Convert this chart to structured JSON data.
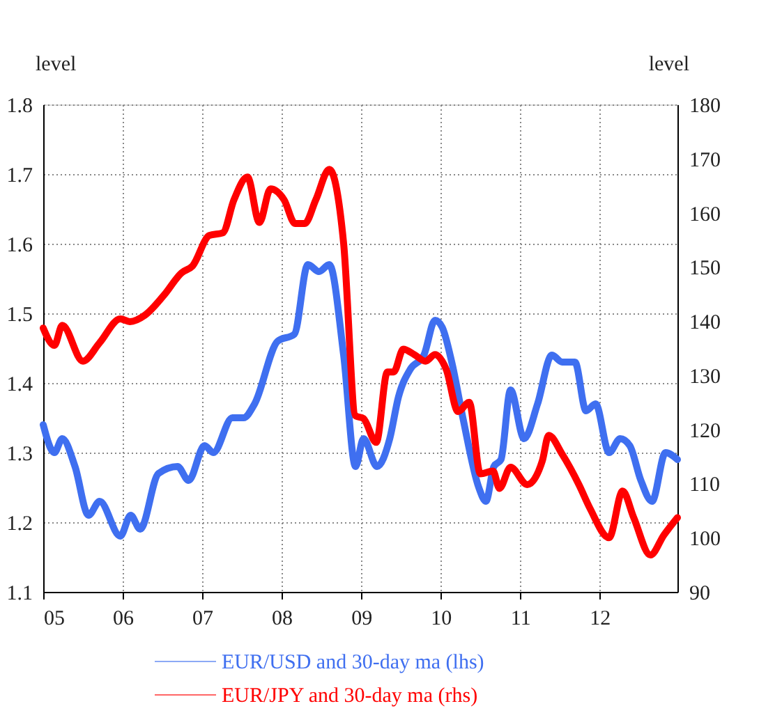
{
  "chart_data": {
    "type": "line",
    "ylabel": "level",
    "y2label": "level",
    "xlim": [
      2005,
      2012.98
    ],
    "xticks": [
      {
        "value": 2005,
        "label": "05"
      },
      {
        "value": 2006,
        "label": "06"
      },
      {
        "value": 2007,
        "label": "07"
      },
      {
        "value": 2008,
        "label": "08"
      },
      {
        "value": 2009,
        "label": "09"
      },
      {
        "value": 2010,
        "label": "10"
      },
      {
        "value": 2011,
        "label": "11"
      },
      {
        "value": 2012,
        "label": "12"
      }
    ],
    "ylim": [
      1.1,
      1.8
    ],
    "yticks": [
      1.1,
      1.2,
      1.3,
      1.4,
      1.5,
      1.6,
      1.7,
      1.8
    ],
    "y2lim": [
      90,
      180
    ],
    "y2ticks": [
      90,
      100,
      110,
      120,
      130,
      140,
      150,
      160,
      170,
      180
    ],
    "grid": true,
    "legend": "bottom",
    "line_style": "solid",
    "marker": "none",
    "series": [
      {
        "name": "EUR/USD and 30-day ma (lhs)",
        "color": "#3f6ff0",
        "x": [
          2005.0,
          2005.14,
          2005.24,
          2005.4,
          2005.57,
          2005.71,
          2005.97,
          2006.1,
          2006.22,
          2006.45,
          2006.69,
          2006.83,
          2007.03,
          2007.14,
          2007.38,
          2007.52,
          2007.66,
          2007.95,
          2008.16,
          2008.33,
          2008.47,
          2008.6,
          2008.78,
          2008.93,
          2009.03,
          2009.2,
          2009.36,
          2009.47,
          2009.62,
          2009.79,
          2009.93,
          2010.02,
          2010.14,
          2010.28,
          2010.48,
          2010.57,
          2010.67,
          2010.76,
          2010.88,
          2011.05,
          2011.22,
          2011.4,
          2011.53,
          2011.69,
          2011.83,
          2011.95,
          2012.12,
          2012.26,
          2012.38,
          2012.52,
          2012.66,
          2012.83,
          2012.98
        ],
        "values": [
          1.34,
          1.3,
          1.32,
          1.28,
          1.21,
          1.23,
          1.18,
          1.21,
          1.19,
          1.27,
          1.28,
          1.26,
          1.31,
          1.3,
          1.35,
          1.35,
          1.37,
          1.46,
          1.47,
          1.57,
          1.56,
          1.57,
          1.44,
          1.28,
          1.32,
          1.28,
          1.32,
          1.38,
          1.42,
          1.44,
          1.49,
          1.48,
          1.43,
          1.35,
          1.25,
          1.23,
          1.28,
          1.29,
          1.39,
          1.32,
          1.37,
          1.44,
          1.43,
          1.43,
          1.36,
          1.37,
          1.3,
          1.32,
          1.31,
          1.26,
          1.23,
          1.3,
          1.29
        ]
      },
      {
        "name": "EUR/JPY and 30-day ma (rhs)",
        "color": "#ff0000",
        "axis": "y2",
        "x": [
          2005.0,
          2005.14,
          2005.24,
          2005.5,
          2005.71,
          2005.97,
          2006.09,
          2006.28,
          2006.52,
          2006.74,
          2006.88,
          2007.09,
          2007.26,
          2007.4,
          2007.57,
          2007.72,
          2007.86,
          2008.03,
          2008.17,
          2008.29,
          2008.43,
          2008.6,
          2008.78,
          2008.93,
          2009.03,
          2009.19,
          2009.33,
          2009.41,
          2009.53,
          2009.67,
          2009.81,
          2009.93,
          2010.07,
          2010.22,
          2010.36,
          2010.5,
          2010.66,
          2010.74,
          2010.88,
          2011.09,
          2011.28,
          2011.36,
          2011.53,
          2011.74,
          2011.88,
          2012.12,
          2012.29,
          2012.43,
          2012.64,
          2012.81,
          2012.98
        ],
        "values": [
          138.7,
          135.5,
          139.2,
          132.6,
          136.0,
          140.4,
          139.9,
          141.1,
          144.8,
          148.9,
          150.2,
          155.8,
          156.3,
          162.4,
          166.6,
          158.2,
          164.4,
          162.4,
          158.0,
          158.0,
          162.4,
          168.0,
          154.3,
          122.5,
          122.0,
          117.6,
          130.6,
          130.6,
          134.8,
          133.8,
          132.6,
          133.8,
          131.1,
          123.3,
          125.0,
          111.8,
          112.3,
          109.1,
          113.0,
          109.8,
          114.2,
          118.9,
          115.4,
          109.8,
          105.4,
          100.0,
          108.6,
          103.7,
          96.8,
          100.5,
          103.7
        ]
      }
    ]
  }
}
